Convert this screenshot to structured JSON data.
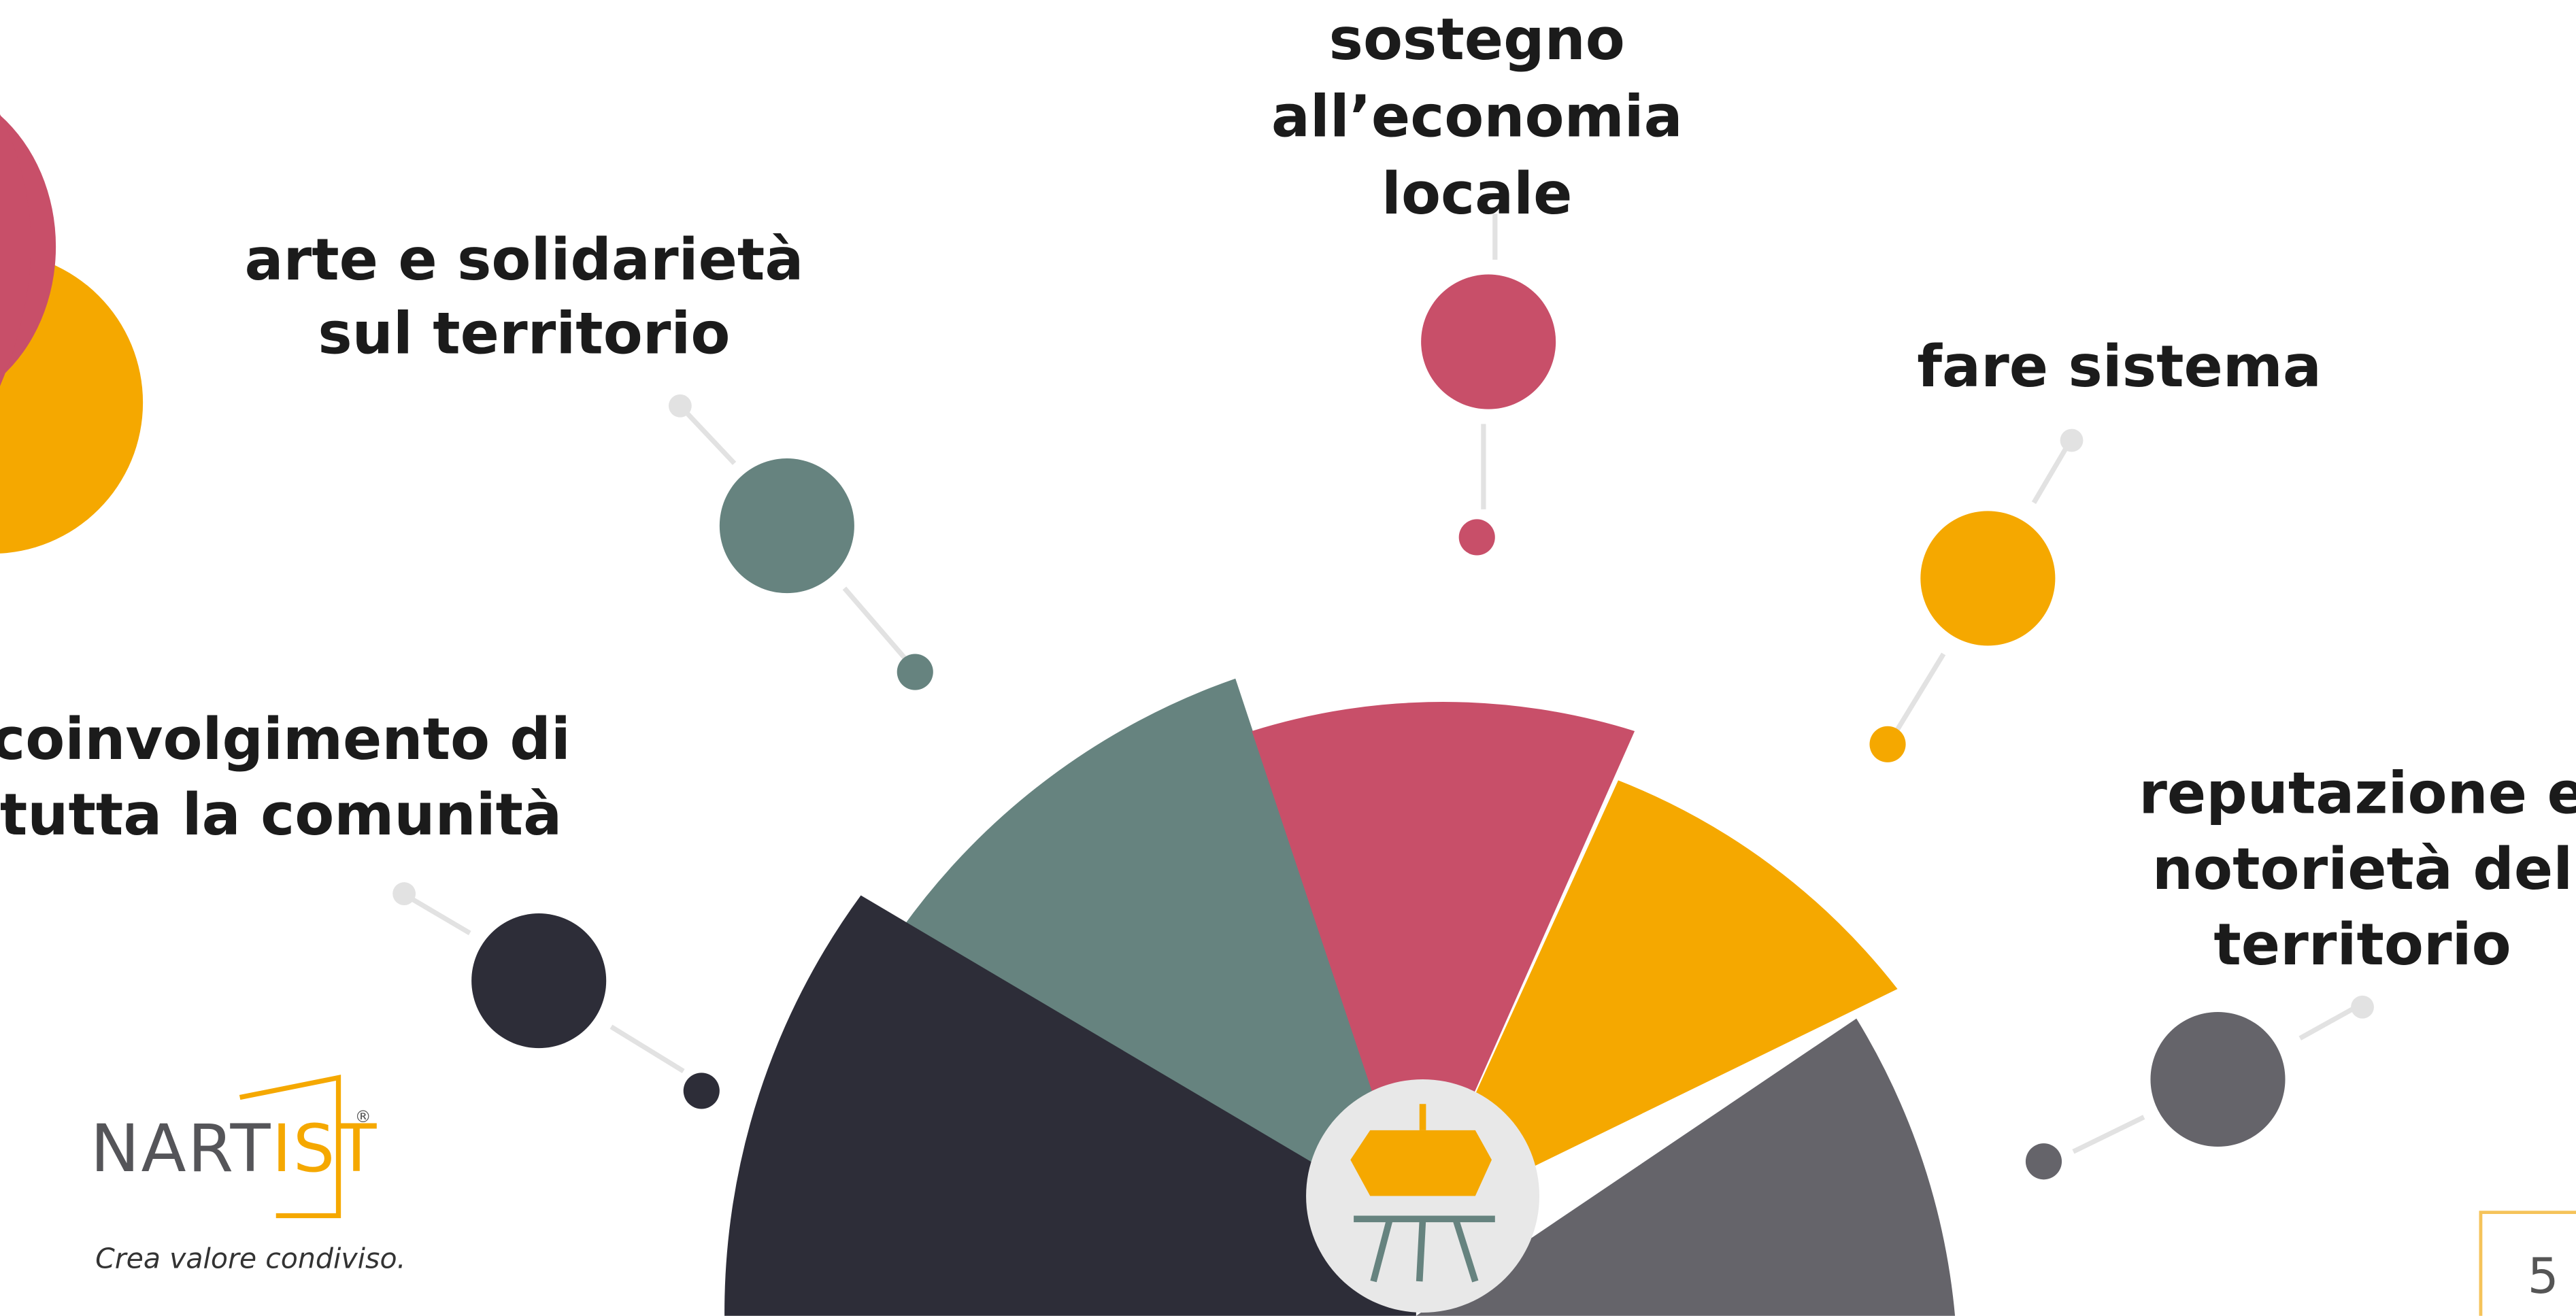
{
  "labels": {
    "arte": [
      "arte e solidarietà",
      "sul territorio"
    ],
    "sostegno": [
      "sostegno",
      "all’economia",
      "locale"
    ],
    "sistema": [
      "fare sistema"
    ],
    "coinvolgimento": [
      "coinvolgimento di",
      "tutta la comunità"
    ],
    "reputazione": [
      "reputazione e",
      "notorietà del",
      "territorio"
    ]
  },
  "logo": {
    "name_start": "NART",
    "name_end": "IST",
    "registered": "®",
    "tagline": "Crea valore condiviso."
  },
  "page_number": "5"
}
